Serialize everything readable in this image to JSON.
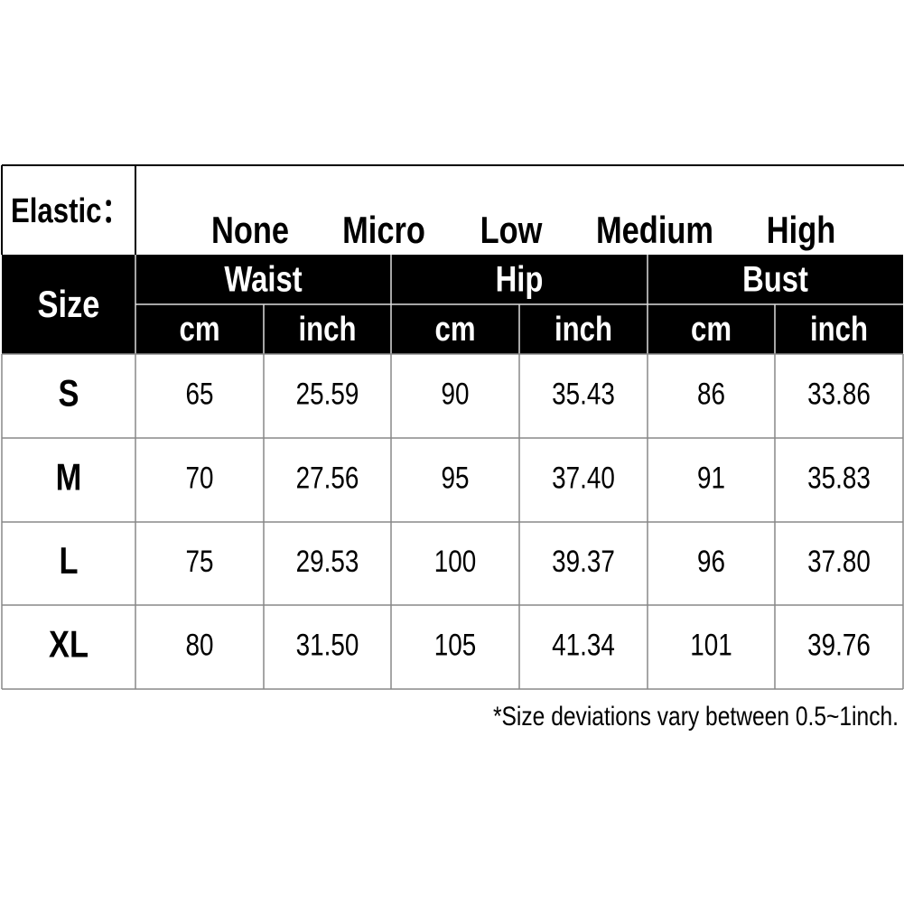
{
  "elastic": {
    "label": "Elastic：",
    "options": [
      "None",
      "Micro",
      "Low",
      "Medium",
      "High"
    ]
  },
  "table": {
    "size_header": "Size",
    "groups": [
      {
        "name": "Waist",
        "units": [
          "cm",
          "inch"
        ]
      },
      {
        "name": "Hip",
        "units": [
          "cm",
          "inch"
        ]
      },
      {
        "name": "Bust",
        "units": [
          "cm",
          "inch"
        ]
      }
    ],
    "rows": [
      {
        "size": "S",
        "values": [
          "65",
          "25.59",
          "90",
          "35.43",
          "86",
          "33.86"
        ]
      },
      {
        "size": "M",
        "values": [
          "70",
          "27.56",
          "95",
          "37.40",
          "91",
          "35.83"
        ]
      },
      {
        "size": "L",
        "values": [
          "75",
          "29.53",
          "100",
          "39.37",
          "96",
          "37.80"
        ]
      },
      {
        "size": "XL",
        "values": [
          "80",
          "31.50",
          "105",
          "41.34",
          "101",
          "39.76"
        ]
      }
    ]
  },
  "note": "*Size deviations vary between 0.5~1inch."
}
